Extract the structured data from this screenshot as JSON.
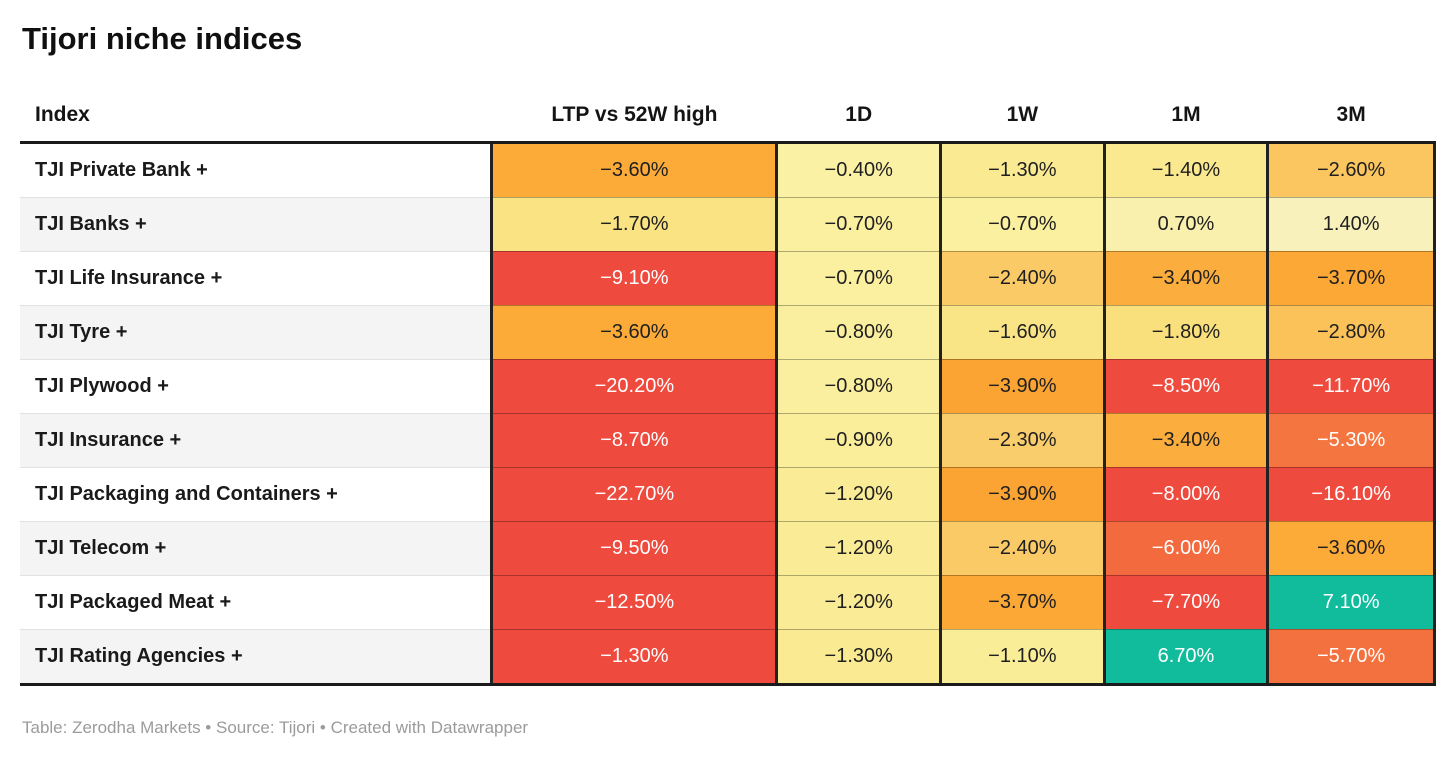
{
  "chart_data": {
    "type": "table",
    "title": "Tijori niche indices",
    "footnote": "Table: Zerodha Markets • Source: Tijori • Created with Datawrapper",
    "columns": [
      "Index",
      "LTP vs 52W high",
      "1D",
      "1W",
      "1M",
      "3M"
    ],
    "rows": [
      {
        "index": "TJI Private Bank +",
        "values": [
          "−3.60%",
          "−0.40%",
          "−1.30%",
          "−1.40%",
          "−2.60%"
        ],
        "bg": [
          "#FCAB38",
          "#FBF1A5",
          "#FAEB93",
          "#FAE98E",
          "#FBC660"
        ],
        "fg": [
          "dark",
          "dark",
          "dark",
          "dark",
          "dark"
        ]
      },
      {
        "index": "TJI Banks +",
        "values": [
          "−1.70%",
          "−0.70%",
          "−0.70%",
          "0.70%",
          "1.40%"
        ],
        "bg": [
          "#FAE382",
          "#FBF0A0",
          "#FBF0A0",
          "#FAF0AE",
          "#F9F1BC"
        ],
        "fg": [
          "dark",
          "dark",
          "dark",
          "dark",
          "dark"
        ]
      },
      {
        "index": "TJI Life Insurance +",
        "values": [
          "−9.10%",
          "−0.70%",
          "−2.40%",
          "−3.40%",
          "−3.70%"
        ],
        "bg": [
          "#EF4A3E",
          "#FBF0A0",
          "#FACA67",
          "#FBAE3E",
          "#FBA836"
        ],
        "fg": [
          "white",
          "dark",
          "dark",
          "dark",
          "dark"
        ]
      },
      {
        "index": "TJI Tyre +",
        "values": [
          "−3.60%",
          "−0.80%",
          "−1.60%",
          "−1.80%",
          "−2.80%"
        ],
        "bg": [
          "#FCAB38",
          "#FAEF9E",
          "#FAE586",
          "#FAE07C",
          "#FBC25A"
        ],
        "fg": [
          "dark",
          "dark",
          "dark",
          "dark",
          "dark"
        ]
      },
      {
        "index": "TJI Plywood +",
        "values": [
          "−20.20%",
          "−0.80%",
          "−3.90%",
          "−8.50%",
          "−11.70%"
        ],
        "bg": [
          "#EF4A3E",
          "#FAEF9E",
          "#FBA433",
          "#EF4A3E",
          "#EF4A3E"
        ],
        "fg": [
          "white",
          "dark",
          "dark",
          "white",
          "white"
        ]
      },
      {
        "index": "TJI Insurance +",
        "values": [
          "−8.70%",
          "−0.90%",
          "−2.30%",
          "−3.40%",
          "−5.30%"
        ],
        "bg": [
          "#EF4A3E",
          "#FAEE9B",
          "#FACD6C",
          "#FBAE3E",
          "#F4753F"
        ],
        "fg": [
          "white",
          "dark",
          "dark",
          "dark",
          "white"
        ]
      },
      {
        "index": "TJI Packaging and Containers +",
        "values": [
          "−22.70%",
          "−1.20%",
          "−3.90%",
          "−8.00%",
          "−16.10%"
        ],
        "bg": [
          "#EF4A3E",
          "#FAEC96",
          "#FBA433",
          "#EF4A3E",
          "#EF4A3E"
        ],
        "fg": [
          "white",
          "dark",
          "dark",
          "white",
          "white"
        ]
      },
      {
        "index": "TJI Telecom +",
        "values": [
          "−9.50%",
          "−1.20%",
          "−2.40%",
          "−6.00%",
          "−3.60%"
        ],
        "bg": [
          "#EF4A3E",
          "#FAEC96",
          "#FACA67",
          "#F26A3D",
          "#FCAB38"
        ],
        "fg": [
          "white",
          "dark",
          "dark",
          "white",
          "dark"
        ]
      },
      {
        "index": "TJI Packaged Meat +",
        "values": [
          "−12.50%",
          "−1.20%",
          "−3.70%",
          "−7.70%",
          "7.10%"
        ],
        "bg": [
          "#EF4A3E",
          "#FAEC96",
          "#FBA836",
          "#EF4A3E",
          "#11BC9D"
        ],
        "fg": [
          "white",
          "dark",
          "dark",
          "white",
          "white"
        ]
      },
      {
        "index": "TJI Rating Agencies +",
        "values": [
          "−1.30%",
          "−1.30%",
          "−1.10%",
          "6.70%",
          "−5.70%"
        ],
        "bg": [
          "#EF4A3E",
          "#FAEB93",
          "#FAED98",
          "#11BC9D",
          "#F3713E"
        ],
        "fg": [
          "white",
          "dark",
          "dark",
          "white",
          "white"
        ]
      }
    ],
    "text_colors": {
      "dark": "#1F1F1F",
      "white": "#FFFFFF"
    },
    "palette": {
      "strong_negative": "#EF4A3E",
      "mid_negative": "#FCAB38",
      "near_zero": "#FBF0A0",
      "strong_positive": "#11BC9D"
    },
    "layout_hints": {
      "grid": "dark vertical separators between value columns, zebra striping on index column",
      "legend": "none"
    }
  }
}
